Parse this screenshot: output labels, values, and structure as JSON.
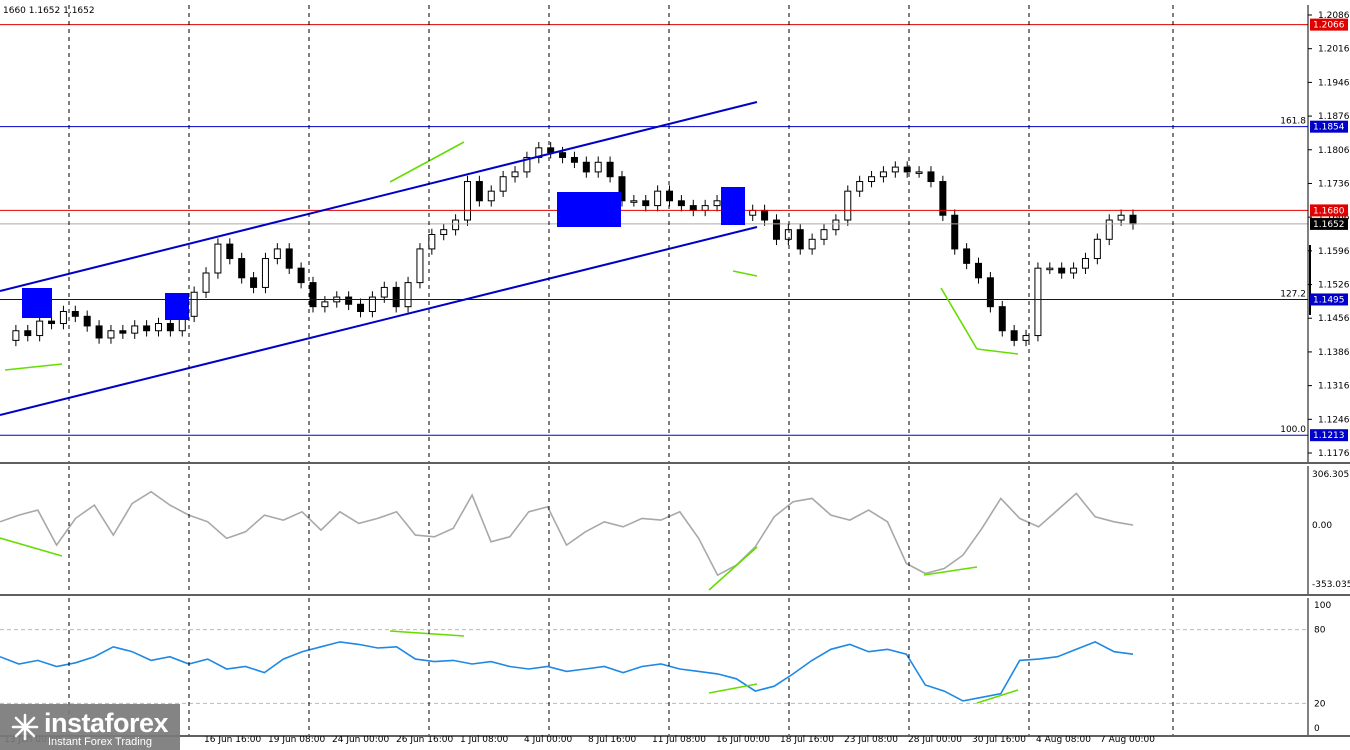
{
  "header_text": "1660 1.1652 1.1652",
  "colors": {
    "channel": "#0000c8",
    "horizontal_level": "#0000c8",
    "red_level": "#e00000",
    "divergence": "#66dd00",
    "cci": "#a8a8a8",
    "rsi": "#1e88e5",
    "grid": "#000000",
    "box": "#0000ff"
  },
  "chart_data": [
    {
      "type": "candlestick",
      "symbol_header": "1660 1.1652 1.1652",
      "ylim": [
        1.1176,
        1.2086
      ],
      "y_ticks": [
        "1.2086",
        "1.2016",
        "1.1946",
        "1.1876",
        "1.1806",
        "1.1736",
        "1.1666",
        "1.1596",
        "1.1526",
        "1.1456",
        "1.1386",
        "1.1316",
        "1.1246",
        "1.1176"
      ],
      "x_tick_labels": [
        "13 Jun 00:00",
        "16 Jun 16:00",
        "19 Jun 08:00",
        "24 Jun 00:00",
        "26 Jun 16:00",
        "1 Jul 08:00",
        "4 Jul 00:00",
        "8 Jul 16:00",
        "11 Jul 08:00",
        "16 Jul 00:00",
        "18 Jul 16:00",
        "23 Jul 08:00",
        "28 Jul 00:00",
        "30 Jul 16:00",
        "4 Aug 08:00",
        "7 Aug 00:00"
      ],
      "price_path": [
        1.141,
        1.143,
        1.142,
        1.145,
        1.1445,
        1.147,
        1.146,
        1.144,
        1.1415,
        1.143,
        1.1425,
        1.144,
        1.143,
        1.1445,
        1.143,
        1.146,
        1.151,
        1.155,
        1.161,
        1.158,
        1.154,
        1.152,
        1.158,
        1.16,
        1.156,
        1.153,
        1.148,
        1.149,
        1.15,
        1.1485,
        1.147,
        1.15,
        1.152,
        1.148,
        1.153,
        1.16,
        1.163,
        1.164,
        1.166,
        1.174,
        1.17,
        1.172,
        1.175,
        1.176,
        1.179,
        1.181,
        1.18,
        1.179,
        1.178,
        1.176,
        1.178,
        1.175,
        1.17,
        1.17,
        1.169,
        1.172,
        1.17,
        1.169,
        1.168,
        1.169,
        1.17,
        1.169,
        1.167,
        1.168,
        1.166,
        1.162,
        1.164,
        1.16,
        1.162,
        1.164,
        1.166,
        1.172,
        1.174,
        1.175,
        1.176,
        1.177,
        1.176,
        1.176,
        1.174,
        1.167,
        1.16,
        1.157,
        1.154,
        1.148,
        1.143,
        1.141,
        1.142,
        1.156,
        1.156,
        1.155,
        1.156,
        1.158,
        1.162,
        1.166,
        1.167,
        1.1652
      ],
      "levels": [
        {
          "label": "1.2066",
          "value": 1.2066,
          "color": "#e00000",
          "box": "#e00000"
        },
        {
          "label": "1.1854",
          "value": 1.1854,
          "color": "#0000c8",
          "box": "#0000c8",
          "fib": "161.8"
        },
        {
          "label": "1.1680",
          "value": 1.168,
          "color": "#e00000",
          "box": "#e00000"
        },
        {
          "label": "1.1652",
          "value": 1.1652,
          "color": "#aaaaaa",
          "box": "#000000"
        },
        {
          "label": "1.1495",
          "value": 1.1495,
          "color": "#0000c8",
          "box": "#0000c8",
          "fib": "127.2"
        },
        {
          "label": "1.1213",
          "value": 1.1213,
          "color": "#0000c8",
          "box": "#0000c8",
          "fib": "100.0"
        }
      ]
    },
    {
      "type": "line",
      "indicator": "CCI",
      "ylim": [
        -353.0356,
        306.3051
      ],
      "y_ticks": [
        "306.3051",
        "0.00",
        "-353.0356"
      ],
      "values": [
        20,
        60,
        90,
        -120,
        40,
        120,
        -60,
        130,
        200,
        120,
        60,
        20,
        -80,
        -40,
        60,
        30,
        80,
        -30,
        80,
        10,
        40,
        80,
        -60,
        -70,
        -20,
        180,
        -100,
        -70,
        80,
        110,
        -120,
        -40,
        20,
        -10,
        40,
        30,
        80,
        -80,
        -300,
        -240,
        -130,
        50,
        140,
        160,
        60,
        30,
        90,
        20,
        -230,
        -290,
        -260,
        -180,
        -20,
        160,
        40,
        -10,
        90,
        190,
        50,
        20,
        0
      ]
    },
    {
      "type": "line",
      "indicator": "RSI",
      "ylim": [
        0,
        100
      ],
      "y_ticks": [
        "100",
        "80",
        "20",
        "0"
      ],
      "levels": [
        80,
        20
      ],
      "values": [
        58,
        52,
        55,
        50,
        53,
        58,
        66,
        62,
        55,
        58,
        52,
        56,
        48,
        50,
        45,
        56,
        62,
        66,
        70,
        68,
        65,
        66,
        56,
        54,
        55,
        52,
        54,
        50,
        48,
        50,
        46,
        48,
        50,
        45,
        50,
        52,
        48,
        46,
        44,
        40,
        30,
        34,
        44,
        55,
        64,
        68,
        62,
        64,
        60,
        35,
        30,
        22,
        25,
        28,
        55,
        56,
        58,
        64,
        70,
        62,
        60
      ]
    }
  ],
  "logo": {
    "brand": "instaforex",
    "tagline": "Instant Forex Trading"
  }
}
